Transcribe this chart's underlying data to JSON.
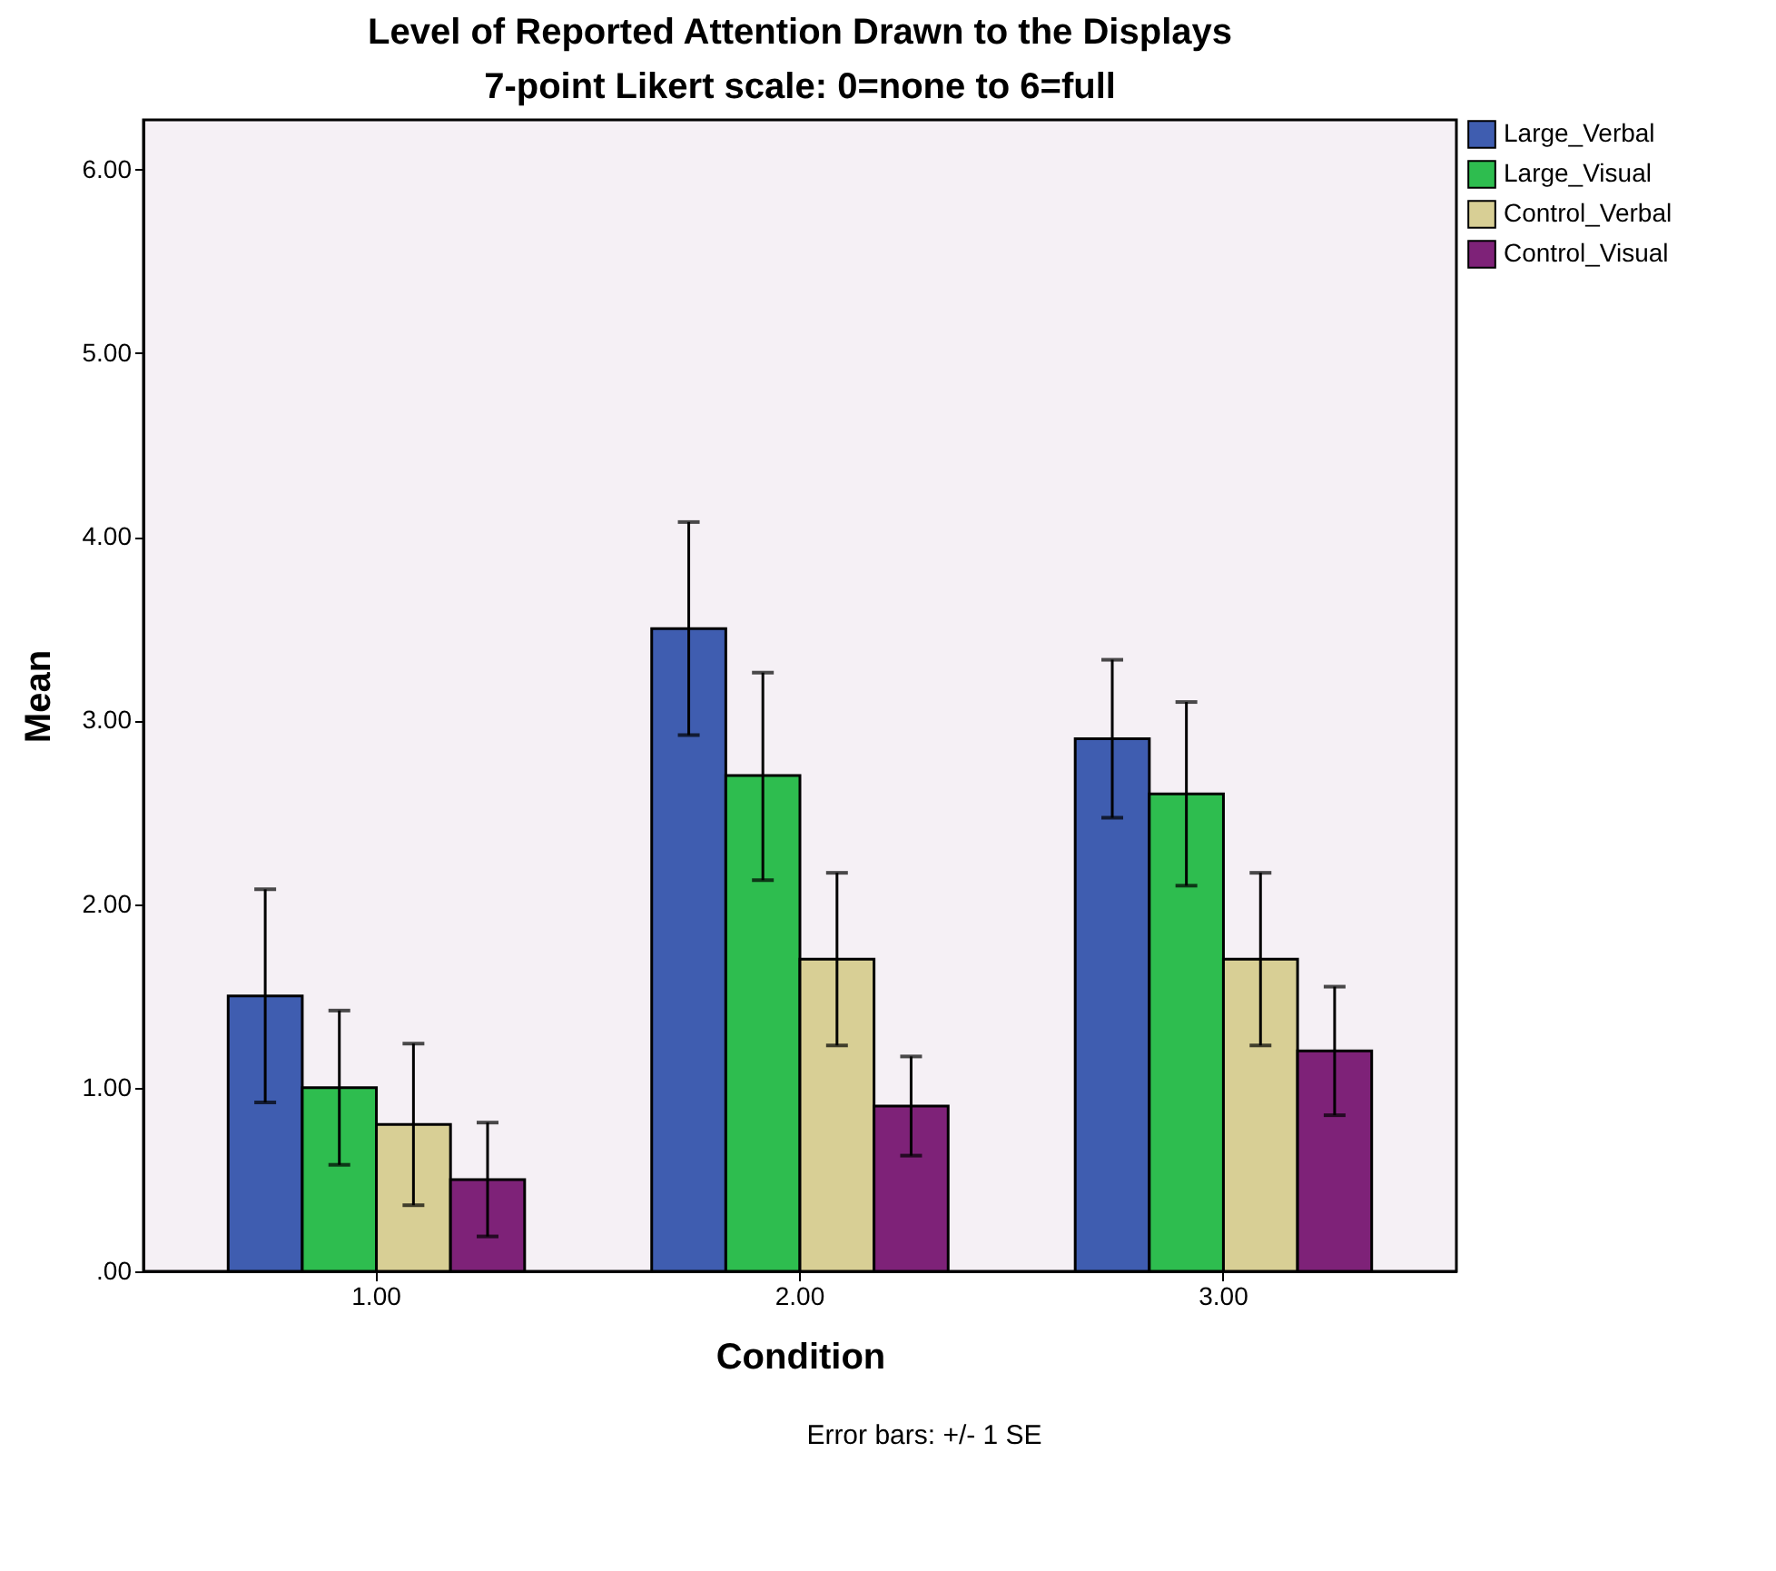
{
  "chart_data": {
    "type": "bar",
    "title": "Level of Reported Attention Drawn to the Displays",
    "subtitle": "7-point Likert scale: 0=none to 6=full",
    "xlabel": "Condition",
    "ylabel": "Mean",
    "categories": [
      "1.00",
      "2.00",
      "3.00"
    ],
    "series": [
      {
        "name": "Large_Verbal",
        "color": "#3f5db0",
        "values": [
          1.5,
          3.5,
          2.9
        ],
        "errors": [
          [
            0.92,
            2.08
          ],
          [
            2.92,
            4.08
          ],
          [
            2.47,
            3.33
          ]
        ]
      },
      {
        "name": "Large_Visual",
        "color": "#2ebd4f",
        "values": [
          1.0,
          2.7,
          2.6
        ],
        "errors": [
          [
            0.58,
            1.42
          ],
          [
            2.13,
            3.26
          ],
          [
            2.1,
            3.1
          ]
        ]
      },
      {
        "name": "Control_Verbal",
        "color": "#d8cf95",
        "values": [
          0.8,
          1.7,
          1.7
        ],
        "errors": [
          [
            0.36,
            1.24
          ],
          [
            1.23,
            2.17
          ],
          [
            1.23,
            2.17
          ]
        ]
      },
      {
        "name": "Control_Visual",
        "color": "#7e2278",
        "values": [
          0.5,
          0.9,
          1.2
        ],
        "errors": [
          [
            0.19,
            0.81
          ],
          [
            0.63,
            1.17
          ],
          [
            0.85,
            1.55
          ]
        ]
      }
    ],
    "ylim": [
      0,
      6.27
    ],
    "yticks": [
      {
        "value": 0,
        "label": ".00"
      },
      {
        "value": 1,
        "label": "1.00"
      },
      {
        "value": 2,
        "label": "2.00"
      },
      {
        "value": 3,
        "label": "3.00"
      },
      {
        "value": 4,
        "label": "4.00"
      },
      {
        "value": 5,
        "label": "5.00"
      },
      {
        "value": 6,
        "label": "6.00"
      }
    ],
    "grid": false,
    "legend": "top right",
    "annotations": [
      "Error bars: +/- 1 SE"
    ]
  }
}
